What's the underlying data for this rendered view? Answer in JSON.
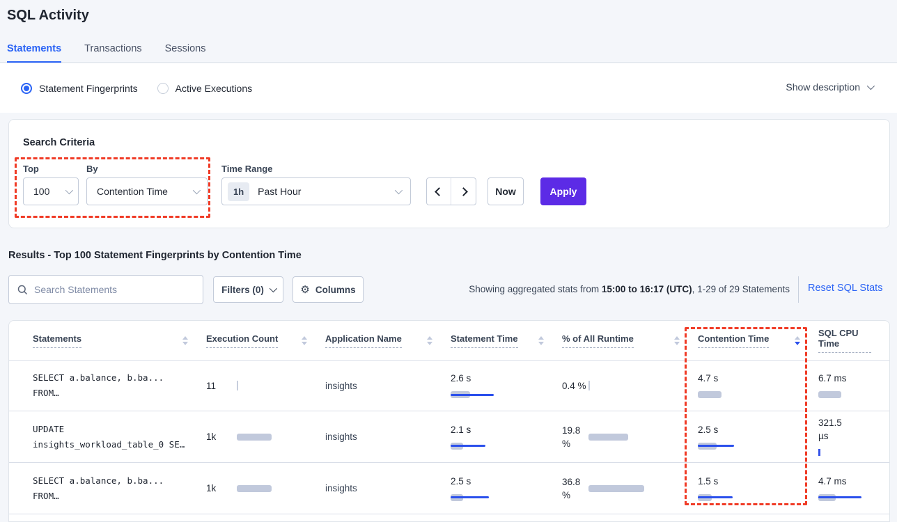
{
  "page": {
    "title": "SQL Activity"
  },
  "tabs": [
    {
      "label": "Statements",
      "active": true
    },
    {
      "label": "Transactions",
      "active": false
    },
    {
      "label": "Sessions",
      "active": false
    }
  ],
  "view_toggle": {
    "options": [
      {
        "label": "Statement Fingerprints",
        "selected": true
      },
      {
        "label": "Active Executions",
        "selected": false
      }
    ],
    "show_description": "Show description"
  },
  "search_criteria": {
    "title": "Search Criteria",
    "top": {
      "label": "Top",
      "value": "100"
    },
    "by": {
      "label": "By",
      "value": "Contention Time"
    },
    "time_range": {
      "label": "Time Range",
      "badge": "1h",
      "value": "Past Hour"
    },
    "now_label": "Now",
    "apply_label": "Apply"
  },
  "results": {
    "heading": "Results - Top 100 Statement Fingerprints by Contention Time",
    "search_placeholder": "Search Statements",
    "filters_label": "Filters (0)",
    "columns_label": "Columns",
    "columns_icon": "⚙",
    "showing_prefix": "Showing aggregated stats from ",
    "showing_bold": "15:00 to 16:17 (UTC)",
    "showing_suffix": ", 1-29 of 29 Statements",
    "reset_label": "Reset SQL Stats"
  },
  "table": {
    "headers": [
      {
        "label": "Statements",
        "sortable": true
      },
      {
        "label": "Execution Count",
        "sortable": true
      },
      {
        "label": "Application Name",
        "sortable": true
      },
      {
        "label": "Statement Time",
        "sortable": true
      },
      {
        "label": "% of All Runtime",
        "sortable": true
      },
      {
        "label": "Contention Time",
        "sortable": true,
        "sorted": "desc"
      },
      {
        "label": "SQL CPU Time",
        "sortable": false
      }
    ],
    "rows": [
      {
        "statement": {
          "line1": "SELECT a.balance, b.ba...",
          "line2": "FROM…"
        },
        "execution_count": {
          "value": "11",
          "bar": {
            "tick": "gray"
          }
        },
        "application_name": "insights",
        "statement_time": {
          "value": "2.6 s",
          "bar": {
            "gray": 28,
            "blue": 62
          }
        },
        "percent_of_all_runtime": {
          "value": "0.4 %",
          "bar": {
            "tick": "gray"
          }
        },
        "contention_time": {
          "value": "4.7 s",
          "bar": {
            "gray": 34
          }
        },
        "sql_cpu_time": {
          "value": "6.7 ms",
          "bar": {
            "gray": 33
          }
        }
      },
      {
        "statement": {
          "line1": "UPDATE",
          "line2": "insights_workload_table_0 SE…"
        },
        "execution_count": {
          "value": "1k",
          "bar": {
            "gray": 50
          }
        },
        "application_name": "insights",
        "statement_time": {
          "value": "2.1 s",
          "bar": {
            "gray": 18,
            "blue": 50
          }
        },
        "percent_of_all_runtime": {
          "value": "19.8 %",
          "bar": {
            "gray": 57
          }
        },
        "contention_time": {
          "value": "2.5 s",
          "bar": {
            "gray": 27,
            "blue": 52
          }
        },
        "sql_cpu_time": {
          "value": "321.5 µs",
          "bar": {
            "tick": "blue"
          }
        }
      },
      {
        "statement": {
          "line1": "SELECT a.balance, b.ba...",
          "line2": "FROM…"
        },
        "execution_count": {
          "value": "1k",
          "bar": {
            "gray": 50
          }
        },
        "application_name": "insights",
        "statement_time": {
          "value": "2.5 s",
          "bar": {
            "gray": 18,
            "blue": 55
          }
        },
        "percent_of_all_runtime": {
          "value": "36.8 %",
          "bar": {
            "gray": 80
          }
        },
        "contention_time": {
          "value": "1.5 s",
          "bar": {
            "gray": 20,
            "blue": 50
          }
        },
        "sql_cpu_time": {
          "value": "4.7 ms",
          "bar": {
            "gray": 25,
            "blue": 62
          }
        }
      }
    ]
  },
  "colors": {
    "accent_blue": "#2A63F5",
    "apply_purple": "#5C2BE6",
    "bar_gray": "#C1C9DC",
    "bar_blue": "#2B50EC",
    "annotation_red": "#F03B26"
  }
}
